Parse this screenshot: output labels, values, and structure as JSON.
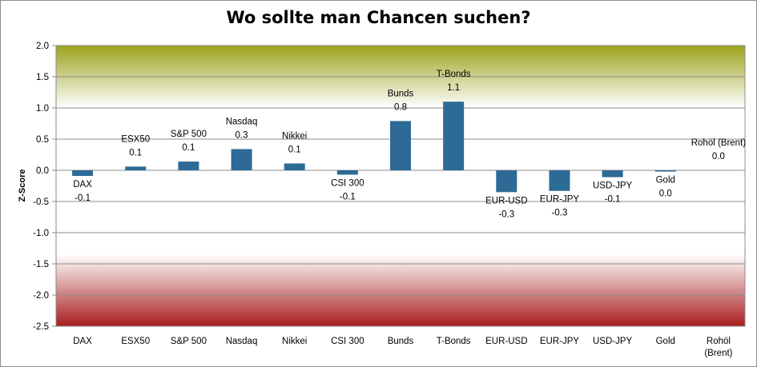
{
  "chart_data": {
    "type": "bar",
    "title": "Wo sollte man Chancen suchen?",
    "ylabel": "Z-Score",
    "xlabel": "",
    "ylim": [
      -2.5,
      2.0
    ],
    "yticks": [
      "2.0",
      "1.5",
      "1.0",
      "0.5",
      "0.0",
      "-0.5",
      "-1.0",
      "-1.5",
      "-2.0",
      "-2.5"
    ],
    "grid": true,
    "bar_color": "#2e6a96",
    "band_colors": {
      "top": "#9ca31d",
      "bottom": "#a81d1f"
    },
    "categories": [
      "DAX",
      "ESX50",
      "S&P 500",
      "Nasdaq",
      "Nikkei",
      "CSI 300",
      "Bunds",
      "T-Bonds",
      "EUR-USD",
      "EUR-JPY",
      "USD-JPY",
      "Gold",
      "Rohöl (Brent)"
    ],
    "axis_labels": [
      "DAX",
      "ESX50",
      "S&P 500",
      "Nasdaq",
      "Nikkei",
      "CSI 300",
      "Bunds",
      "T-Bonds",
      "EUR-USD",
      "EUR-JPY",
      "USD-JPY",
      "Gold",
      "Rohöl\n(Brent)"
    ],
    "values": [
      -0.09,
      0.06,
      0.14,
      0.34,
      0.11,
      -0.07,
      0.79,
      1.1,
      -0.35,
      -0.33,
      -0.11,
      -0.02,
      0.0
    ],
    "value_labels": [
      "-0.1",
      "0.1",
      "0.1",
      "0.3",
      "0.1",
      "-0.1",
      "0.8",
      "1.1",
      "-0.3",
      "-0.3",
      "-0.1",
      "0.0",
      "0.0"
    ]
  }
}
